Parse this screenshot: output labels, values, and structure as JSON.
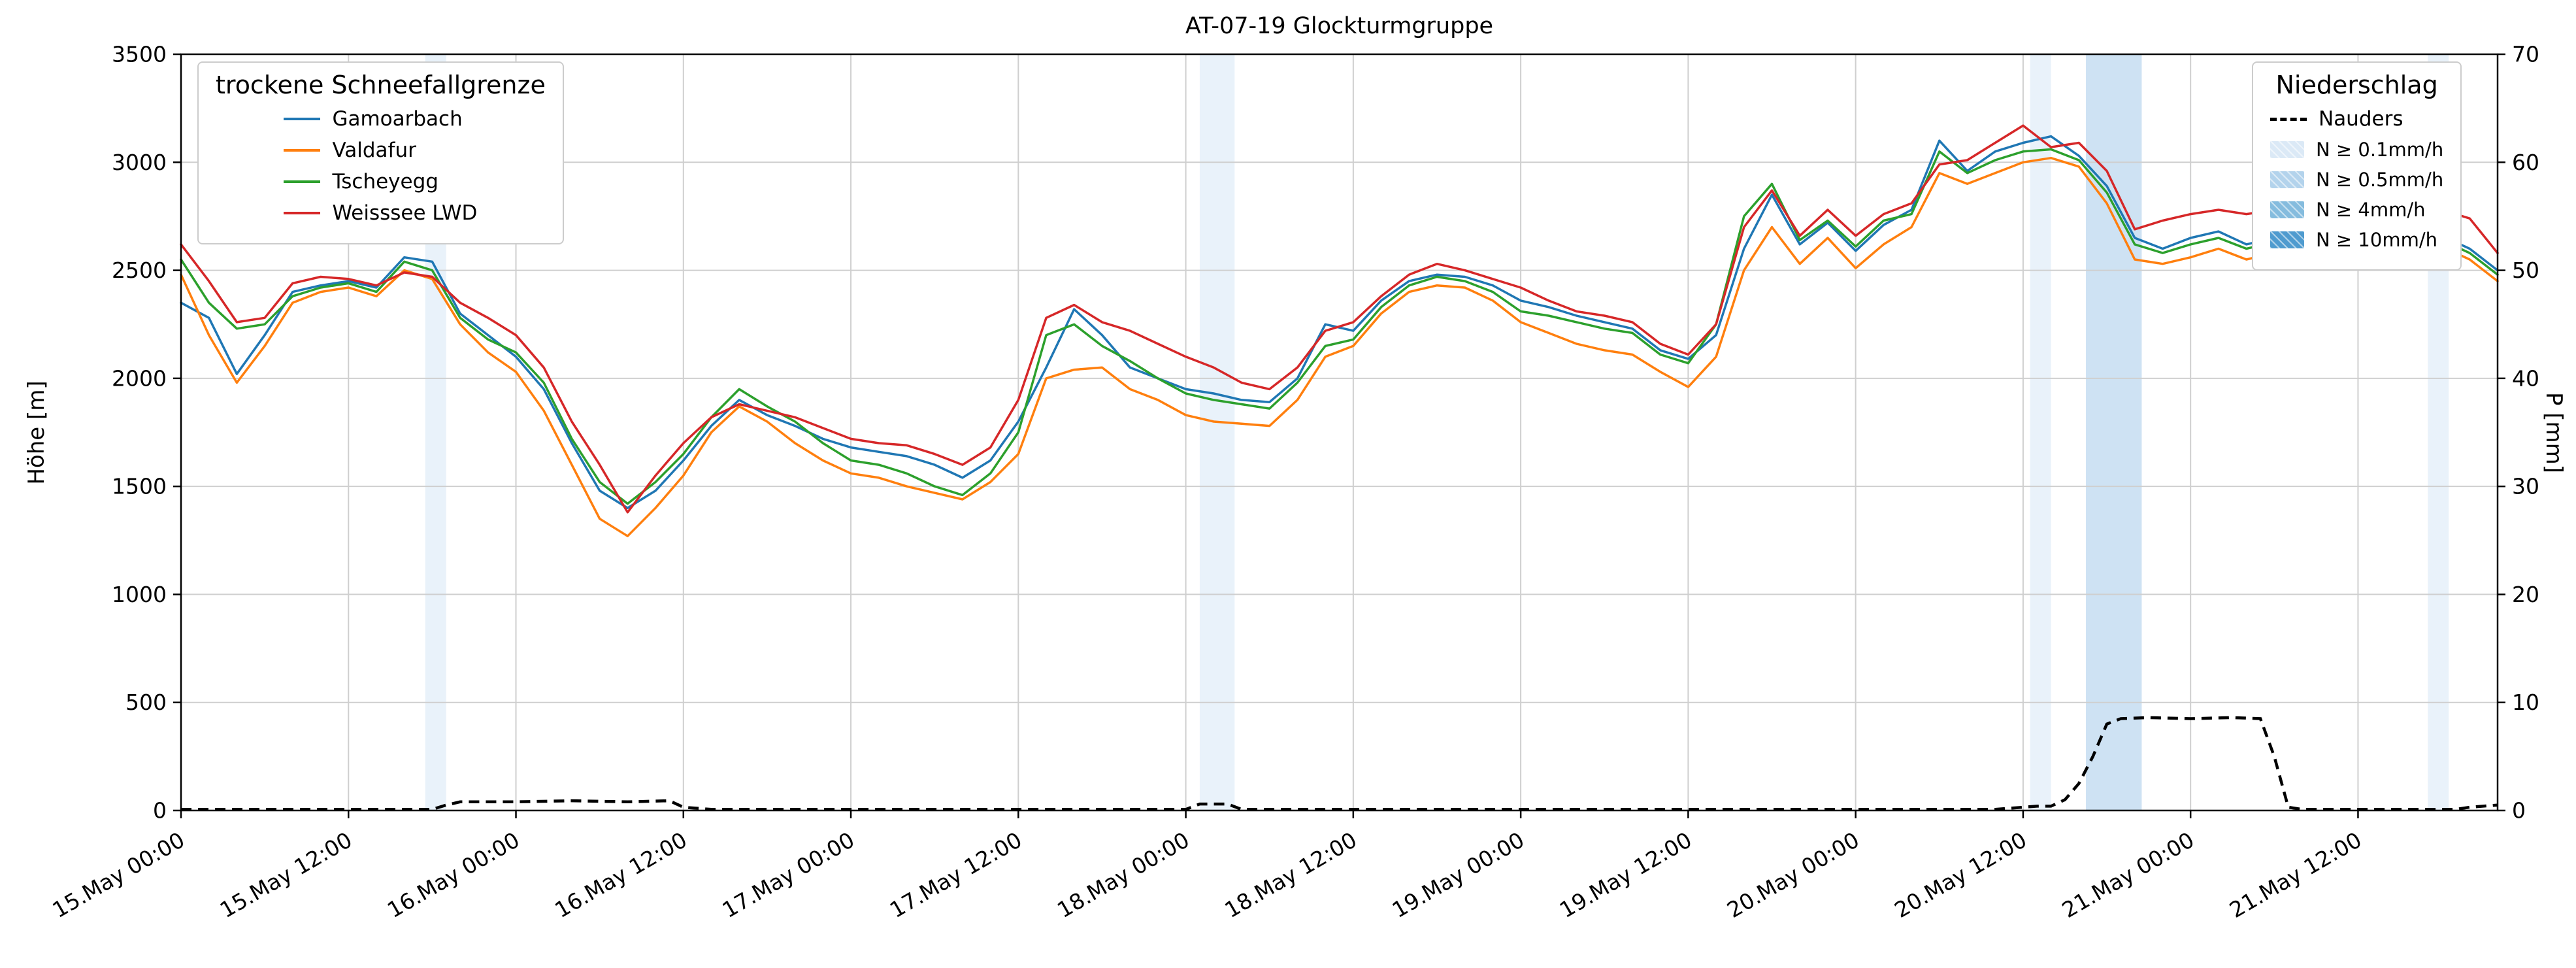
{
  "title": "AT-07-19 Glockturmgruppe",
  "chart_data": {
    "type": "line",
    "title": "AT-07-19 Glockturmgruppe",
    "ylabel_left": "Höhe [m]",
    "ylabel_right": "P [mm]",
    "ylim_left": [
      0,
      3500
    ],
    "ylim_right": [
      0,
      70
    ],
    "yticks_left": [
      0,
      500,
      1000,
      1500,
      2000,
      2500,
      3000,
      3500
    ],
    "yticks_right": [
      0,
      10,
      20,
      30,
      40,
      50,
      60,
      70
    ],
    "grid": true,
    "x_unit": "hours since 15 May 00:00",
    "xlim": [
      0,
      166
    ],
    "xticks": [
      {
        "t": 0,
        "label": "15.May 00:00"
      },
      {
        "t": 12,
        "label": "15.May 12:00"
      },
      {
        "t": 24,
        "label": "16.May 00:00"
      },
      {
        "t": 36,
        "label": "16.May 12:00"
      },
      {
        "t": 48,
        "label": "17.May 00:00"
      },
      {
        "t": 60,
        "label": "17.May 12:00"
      },
      {
        "t": 72,
        "label": "18.May 00:00"
      },
      {
        "t": 84,
        "label": "18.May 12:00"
      },
      {
        "t": 96,
        "label": "19.May 00:00"
      },
      {
        "t": 108,
        "label": "19.May 12:00"
      },
      {
        "t": 120,
        "label": "20.May 00:00"
      },
      {
        "t": 132,
        "label": "20.May 12:00"
      },
      {
        "t": 144,
        "label": "21.May 00:00"
      },
      {
        "t": 156,
        "label": "21.May 12:00"
      }
    ],
    "x_hours": [
      0,
      2,
      4,
      6,
      8,
      10,
      12,
      14,
      16,
      18,
      20,
      22,
      24,
      26,
      28,
      30,
      32,
      34,
      36,
      38,
      40,
      42,
      44,
      46,
      48,
      50,
      52,
      54,
      56,
      58,
      60,
      62,
      64,
      66,
      68,
      70,
      72,
      74,
      76,
      78,
      80,
      82,
      84,
      86,
      88,
      90,
      92,
      94,
      96,
      98,
      100,
      102,
      104,
      106,
      108,
      110,
      112,
      114,
      116,
      118,
      120,
      122,
      124,
      126,
      128,
      130,
      132,
      134,
      136,
      138,
      140,
      142,
      144,
      146,
      148,
      150,
      152,
      154,
      156,
      158,
      160,
      162,
      164,
      166
    ],
    "series": [
      {
        "name": "Gamoarbach",
        "color": "#1f77b4",
        "axis": "left",
        "values": [
          2350,
          2280,
          2020,
          2200,
          2400,
          2430,
          2450,
          2420,
          2560,
          2540,
          2300,
          2200,
          2100,
          1950,
          1700,
          1480,
          1400,
          1480,
          1620,
          1780,
          1900,
          1830,
          1780,
          1720,
          1680,
          1660,
          1640,
          1600,
          1540,
          1620,
          1800,
          2050,
          2320,
          2200,
          2050,
          2000,
          1950,
          1930,
          1900,
          1890,
          2000,
          2250,
          2220,
          2360,
          2450,
          2480,
          2470,
          2430,
          2360,
          2330,
          2290,
          2260,
          2230,
          2130,
          2090,
          2200,
          2600,
          2850,
          2620,
          2720,
          2590,
          2710,
          2780,
          3100,
          2960,
          3050,
          3090,
          3120,
          3030,
          2890,
          2650,
          2600,
          2650,
          2680,
          2620,
          2650,
          2670,
          2640,
          2650,
          2670,
          2650,
          2660,
          2600,
          2500
        ]
      },
      {
        "name": "Valdafur",
        "color": "#ff7f0e",
        "axis": "left",
        "values": [
          2480,
          2200,
          1980,
          2150,
          2350,
          2400,
          2420,
          2380,
          2500,
          2460,
          2250,
          2120,
          2030,
          1850,
          1600,
          1350,
          1270,
          1400,
          1550,
          1750,
          1870,
          1800,
          1700,
          1620,
          1560,
          1540,
          1500,
          1470,
          1440,
          1520,
          1650,
          2000,
          2040,
          2050,
          1950,
          1900,
          1830,
          1800,
          1790,
          1780,
          1900,
          2100,
          2150,
          2300,
          2400,
          2430,
          2420,
          2360,
          2260,
          2210,
          2160,
          2130,
          2110,
          2030,
          1960,
          2100,
          2500,
          2700,
          2530,
          2650,
          2510,
          2620,
          2700,
          2950,
          2900,
          2950,
          3000,
          3020,
          2980,
          2810,
          2550,
          2530,
          2560,
          2600,
          2550,
          2580,
          2600,
          2580,
          2600,
          2620,
          2600,
          2610,
          2550,
          2450
        ]
      },
      {
        "name": "Tscheyegg",
        "color": "#2ca02c",
        "axis": "left",
        "values": [
          2550,
          2350,
          2230,
          2250,
          2380,
          2420,
          2440,
          2400,
          2540,
          2500,
          2280,
          2180,
          2120,
          1980,
          1720,
          1520,
          1420,
          1520,
          1650,
          1820,
          1950,
          1870,
          1800,
          1700,
          1620,
          1600,
          1560,
          1500,
          1460,
          1560,
          1750,
          2200,
          2250,
          2150,
          2080,
          2000,
          1930,
          1900,
          1880,
          1860,
          1980,
          2150,
          2180,
          2330,
          2430,
          2470,
          2450,
          2400,
          2310,
          2290,
          2260,
          2230,
          2210,
          2110,
          2070,
          2250,
          2750,
          2900,
          2640,
          2730,
          2610,
          2730,
          2760,
          3050,
          2950,
          3010,
          3050,
          3060,
          3010,
          2860,
          2620,
          2580,
          2620,
          2650,
          2600,
          2630,
          2650,
          2620,
          2640,
          2650,
          2630,
          2640,
          2580,
          2480
        ]
      },
      {
        "name": "Weisssee LWD",
        "color": "#d62728",
        "axis": "left",
        "values": [
          2620,
          2450,
          2260,
          2280,
          2440,
          2470,
          2460,
          2430,
          2490,
          2470,
          2350,
          2280,
          2200,
          2050,
          1800,
          1600,
          1380,
          1550,
          1700,
          1820,
          1880,
          1850,
          1820,
          1770,
          1720,
          1700,
          1690,
          1650,
          1600,
          1680,
          1900,
          2280,
          2340,
          2260,
          2220,
          2160,
          2100,
          2050,
          1980,
          1950,
          2050,
          2220,
          2260,
          2380,
          2480,
          2530,
          2500,
          2460,
          2420,
          2360,
          2310,
          2290,
          2260,
          2160,
          2110,
          2250,
          2700,
          2870,
          2660,
          2780,
          2660,
          2760,
          2810,
          2990,
          3010,
          3090,
          3170,
          3070,
          3090,
          2960,
          2690,
          2730,
          2760,
          2780,
          2760,
          2780,
          2770,
          2780,
          2760,
          2780,
          2770,
          2780,
          2740,
          2580
        ]
      }
    ],
    "precipitation": {
      "name": "Nauders",
      "color": "#000000",
      "style": "dashed",
      "axis": "right",
      "x_hours": [
        0,
        18,
        19,
        20,
        24,
        28,
        32,
        35,
        36,
        38,
        60,
        72,
        73,
        75,
        76,
        100,
        130,
        133,
        134,
        135,
        136,
        137,
        138,
        139,
        141,
        144,
        147,
        149,
        150,
        151,
        152,
        163,
        164,
        166
      ],
      "values": [
        0.1,
        0.1,
        0.5,
        0.8,
        0.8,
        0.9,
        0.8,
        0.9,
        0.3,
        0.1,
        0.1,
        0.1,
        0.6,
        0.6,
        0.1,
        0.1,
        0.1,
        0.4,
        0.4,
        1.0,
        2.5,
        5.0,
        8.0,
        8.5,
        8.6,
        8.5,
        8.6,
        8.5,
        5.0,
        0.3,
        0.1,
        0.1,
        0.3,
        0.5
      ]
    },
    "precip_bands": [
      {
        "start": 17.5,
        "end": 19.0,
        "level": "0.1"
      },
      {
        "start": 73.0,
        "end": 75.5,
        "level": "0.1"
      },
      {
        "start": 132.5,
        "end": 134.0,
        "level": "0.1"
      },
      {
        "start": 136.5,
        "end": 140.5,
        "level": "0.5"
      },
      {
        "start": 161.0,
        "end": 162.5,
        "level": "0.1"
      }
    ],
    "band_colors": {
      "0.1": "#dbe9f6",
      "0.5": "#aecfeb",
      "4": "#85bcde",
      "10": "#4f9bcf"
    },
    "legend_snowline": {
      "title": "trockene Schneefallgrenze",
      "entries": [
        "Gamoarbach",
        "Valdafur",
        "Tscheyegg",
        "Weisssee LWD"
      ]
    },
    "legend_precip": {
      "title": "Niederschlag",
      "line_entry": {
        "label": "Nauders"
      },
      "patch_entries": [
        {
          "label": "N ≥ 0.1mm/h",
          "color": "#dbe9f6"
        },
        {
          "label": "N ≥ 0.5mm/h",
          "color": "#b3d3ec"
        },
        {
          "label": "N ≥ 4mm/h",
          "color": "#85bcde"
        },
        {
          "label": "N ≥ 10mm/h",
          "color": "#4f9bcf"
        }
      ]
    }
  }
}
